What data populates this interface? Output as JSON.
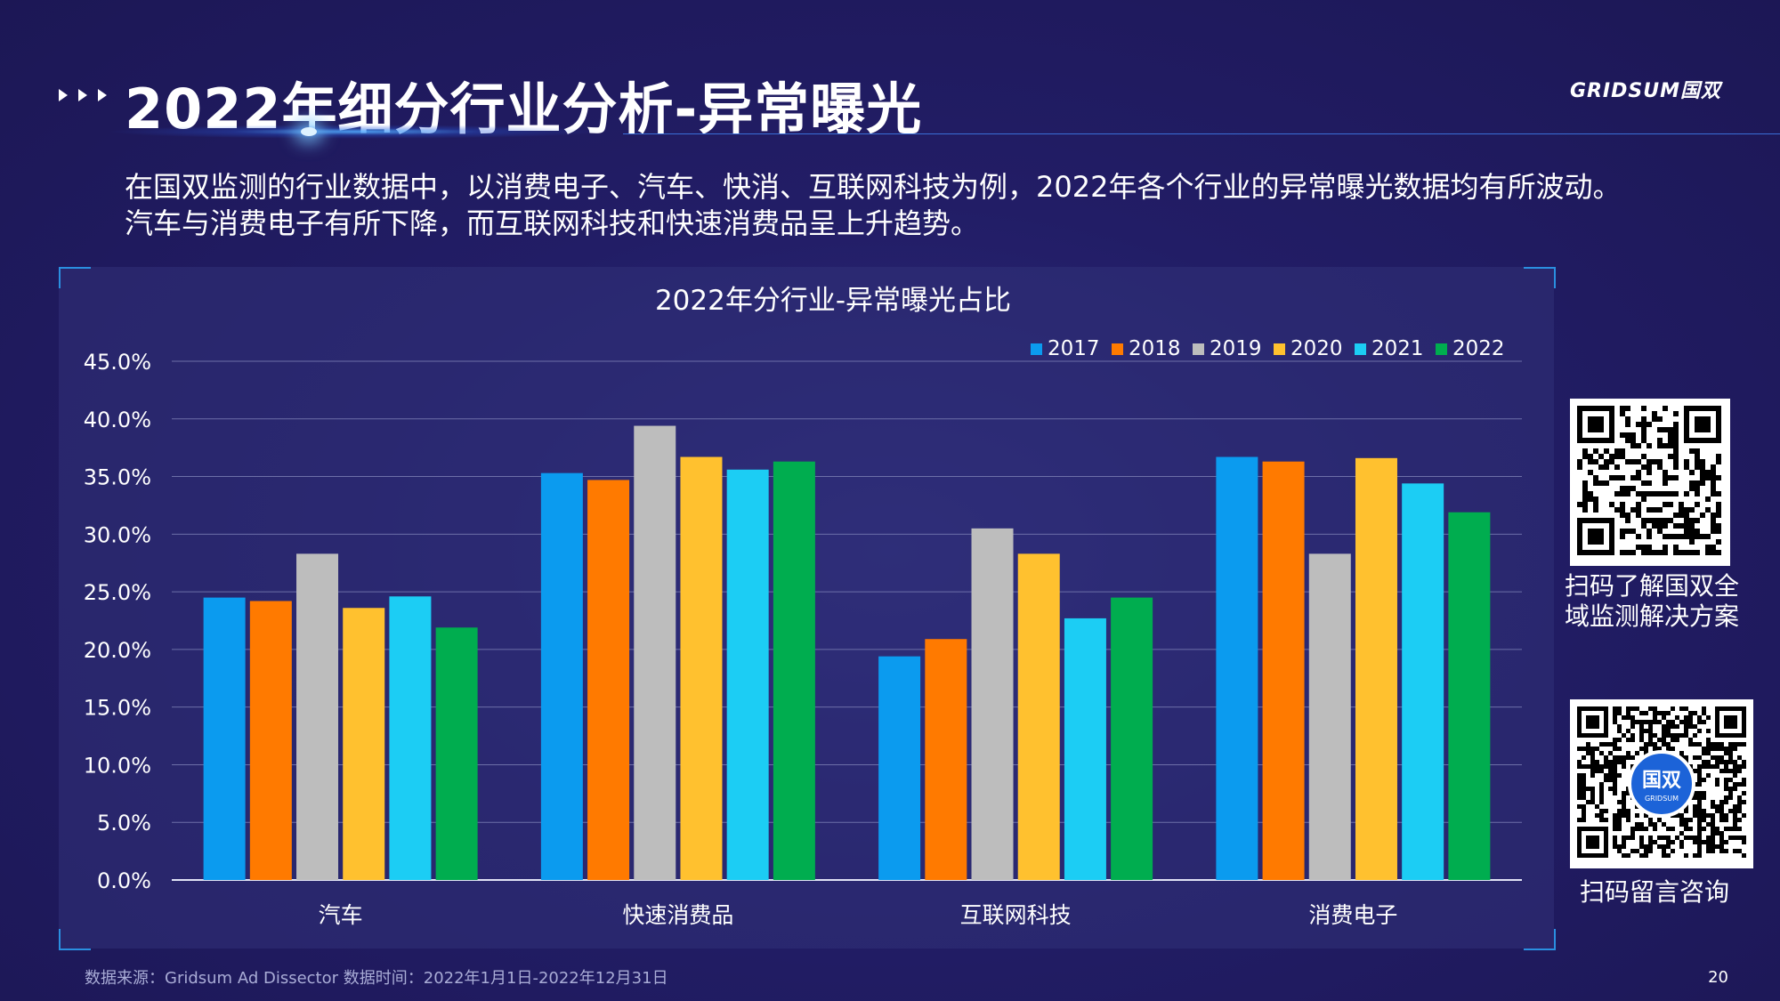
{
  "header": {
    "title": "2022年细分行业分析-异常曝光",
    "logo_text": "GRIDSUM国双"
  },
  "intro": {
    "line1": "在国双监测的行业数据中，以消费电子、汽车、快消、互联网科技为例，2022年各个行业的异常曝光数据均有所波动。",
    "line2": "汽车与消费电子有所下降，而互联网科技和快速消费品呈上升趋势。"
  },
  "chart_data": {
    "type": "bar",
    "title": "2022年分行业-异常曝光占比",
    "categories": [
      "汽车",
      "快速消费品",
      "互联网科技",
      "消费电子"
    ],
    "series": [
      {
        "name": "2017",
        "color": "#0b9bef",
        "values": [
          24.5,
          35.3,
          19.4,
          36.7
        ]
      },
      {
        "name": "2018",
        "color": "#ff7a00",
        "values": [
          24.2,
          34.7,
          20.9,
          36.3
        ]
      },
      {
        "name": "2019",
        "color": "#bdbdbd",
        "values": [
          28.3,
          39.4,
          30.5,
          28.3
        ]
      },
      {
        "name": "2020",
        "color": "#ffc12f",
        "values": [
          23.6,
          36.7,
          28.3,
          36.6
        ]
      },
      {
        "name": "2021",
        "color": "#1ccdf4",
        "values": [
          24.6,
          35.6,
          22.7,
          34.4
        ]
      },
      {
        "name": "2022",
        "color": "#00ad4f",
        "values": [
          21.9,
          36.3,
          24.5,
          31.9
        ]
      }
    ],
    "ylim": [
      0,
      45
    ],
    "yticks": [
      "0.0%",
      "5.0%",
      "10.0%",
      "15.0%",
      "20.0%",
      "25.0%",
      "30.0%",
      "35.0%",
      "40.0%",
      "45.0%"
    ],
    "ytick_values": [
      0,
      5,
      10,
      15,
      20,
      25,
      30,
      35,
      40,
      45
    ],
    "legend_position": "top-right",
    "grid": true
  },
  "qr1": {
    "caption_line1": "扫码了解国双全",
    "caption_line2": "域监测解决方案"
  },
  "qr2": {
    "caption": "扫码留言咨询",
    "badge_text": "国双",
    "badge_sub": "GRIDSUM"
  },
  "footer": {
    "source": "数据来源：Gridsum Ad Dissector 数据时间：2022年1月1日-2022年12月31日",
    "page_number": "20"
  }
}
